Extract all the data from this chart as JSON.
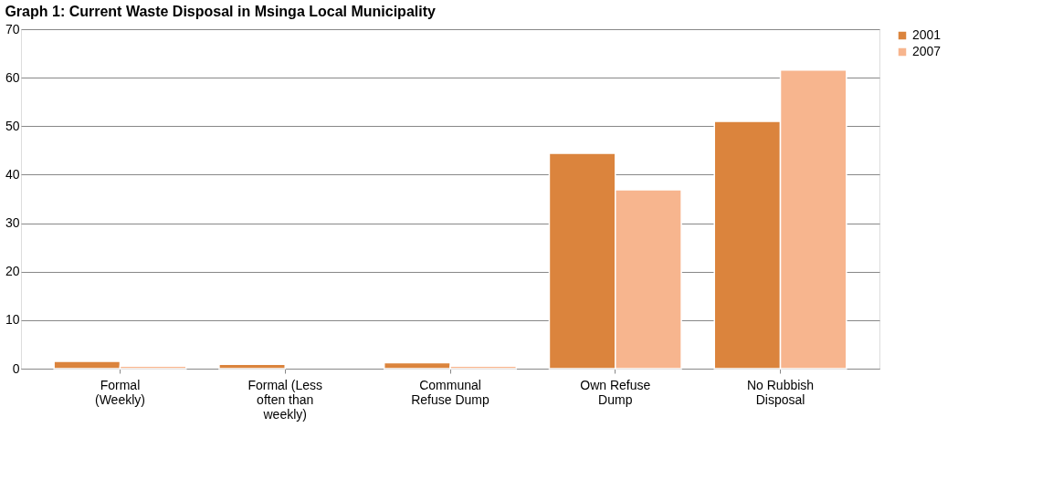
{
  "chart_data": {
    "type": "bar",
    "title": "Graph 1: Current Waste Disposal in Msinga Local Municipality",
    "categories": [
      "Formal (Weekly)",
      "Formal (Less often than weekly)",
      "Communal Refuse Dump",
      "Own Refuse Dump",
      "No Rubbish Disposal"
    ],
    "series": [
      {
        "name": "2001",
        "color": "#db843d",
        "values": [
          1.5,
          0.9,
          1.2,
          44.4,
          51.0
        ]
      },
      {
        "name": "2007",
        "color": "#f7b58e",
        "values": [
          0.5,
          null,
          0.5,
          36.9,
          61.6
        ]
      }
    ],
    "ylim": [
      0,
      70
    ],
    "yticks": [
      0,
      10,
      20,
      30,
      40,
      50,
      60,
      70
    ],
    "grid": "y",
    "legend": "right"
  }
}
